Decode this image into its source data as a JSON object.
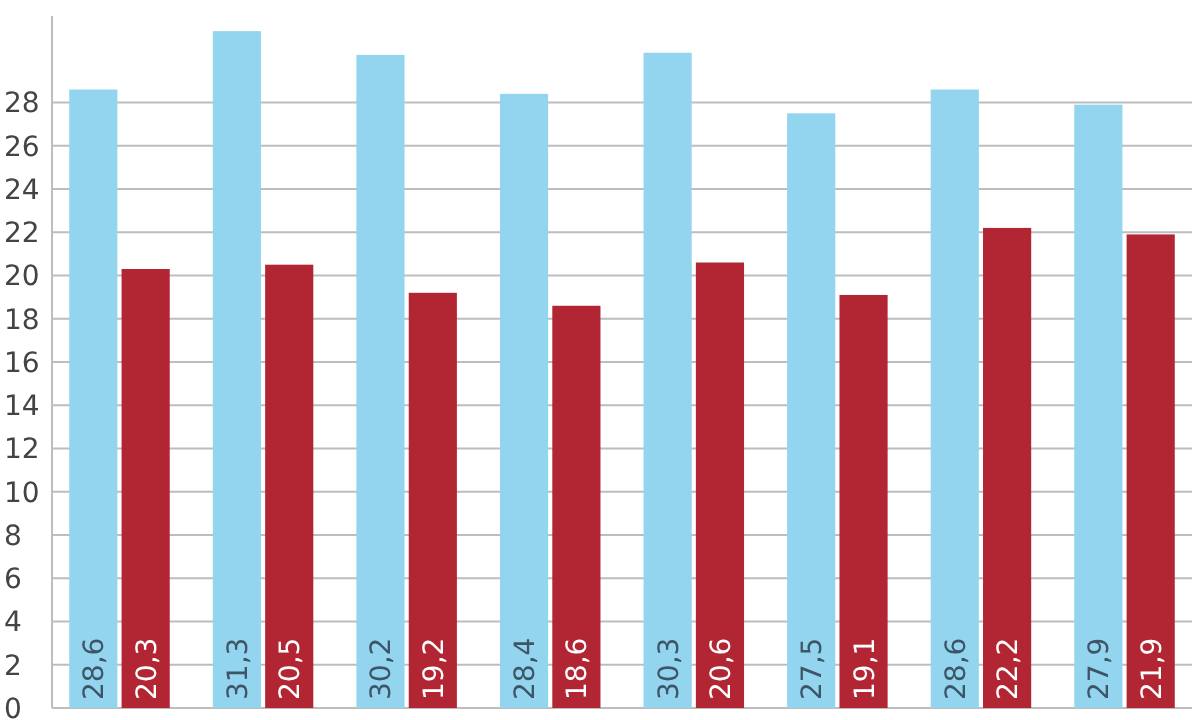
{
  "chart_data": {
    "type": "bar",
    "categories": [
      null,
      null,
      null,
      null,
      null,
      null,
      null,
      null
    ],
    "series": [
      {
        "color": "#93d5ee",
        "values": [
          28.6,
          31.3,
          30.2,
          28.4,
          30.3,
          27.5,
          28.6,
          27.9
        ],
        "value_labels": [
          "28,6",
          "31,3",
          "30,2",
          "28,4",
          "30,3",
          "27,5",
          "28,6",
          "27,9"
        ]
      },
      {
        "color": "#b22532",
        "values": [
          20.3,
          20.5,
          19.2,
          18.6,
          20.6,
          19.1,
          22.2,
          21.9
        ],
        "value_labels": [
          "20,3",
          "20,5",
          "19,2",
          "18,6",
          "20,6",
          "19,1",
          "22,2",
          "21,9"
        ]
      }
    ],
    "ylim": [
      0,
      32
    ],
    "yticks": [
      0,
      2,
      4,
      6,
      8,
      10,
      12,
      14,
      16,
      18,
      20,
      22,
      24,
      26,
      28
    ],
    "grid": "y",
    "tick_labels": "y"
  }
}
